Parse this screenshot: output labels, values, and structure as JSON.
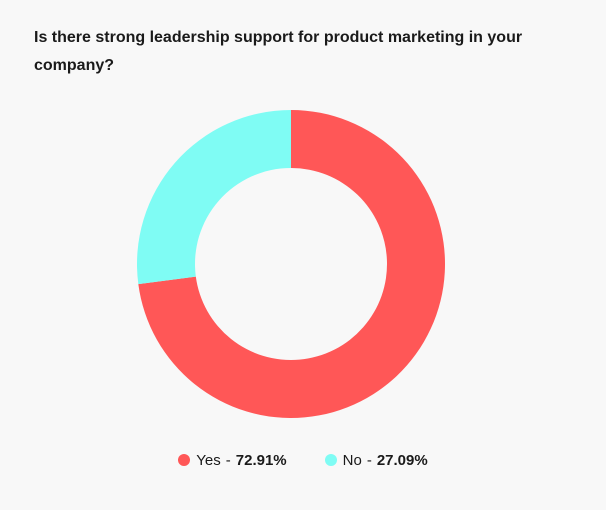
{
  "title": "Is there strong leadership support for product marketing in your company?",
  "colors": {
    "yes": "#ff5757",
    "no": "#7ffcf4",
    "background": "#f8f8f8"
  },
  "legend": {
    "separator": "-",
    "items": [
      {
        "label": "Yes",
        "value": "72.91%"
      },
      {
        "label": "No",
        "value": "27.09%"
      }
    ]
  },
  "chart_data": {
    "type": "pie",
    "variant": "donut",
    "title": "Is there strong leadership support for product marketing in your company?",
    "categories": [
      "Yes",
      "No"
    ],
    "values": [
      72.91,
      27.09
    ],
    "colors": [
      "#ff5757",
      "#7ffcf4"
    ],
    "start_angle": "12 o'clock",
    "direction": "clockwise",
    "legend_placement": "bottom-center"
  }
}
